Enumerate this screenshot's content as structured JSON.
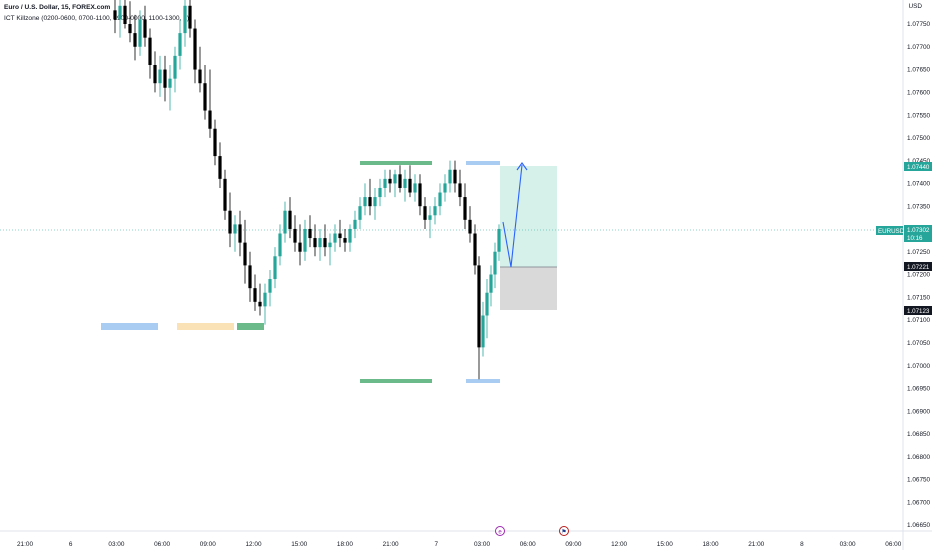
{
  "header": {
    "title": "Euro / U.S. Dollar, 15, FOREX.com",
    "indicator": "ICT Killzone (0200-0600, 0700-1100, 1900-0000, 1100-1300, 2)"
  },
  "price_axis": {
    "currency": "USD",
    "tick_labels": [
      "1.07750",
      "1.07700",
      "1.07650",
      "1.07600",
      "1.07550",
      "1.07500",
      "1.07450",
      "1.07400",
      "1.07350",
      "1.07300",
      "1.07250",
      "1.07200",
      "1.07150",
      "1.07100",
      "1.07050",
      "1.07000",
      "1.06950",
      "1.06900",
      "1.06850",
      "1.06800",
      "1.06750",
      "1.06700",
      "1.06650"
    ]
  },
  "time_axis": {
    "tick_labels": [
      "21:00",
      "6",
      "03:00",
      "06:00",
      "09:00",
      "12:00",
      "15:00",
      "18:00",
      "21:00",
      "7",
      "03:00",
      "06:00",
      "09:00",
      "12:00",
      "15:00",
      "18:00",
      "21:00",
      "8",
      "03:00",
      "06:00"
    ]
  },
  "price_tags": {
    "symbol": "EURUSD",
    "last_price": "1.07302",
    "countdown": "10:16",
    "target": "1.07440",
    "entry": "1.07221",
    "stop": "1.07123"
  },
  "events": [
    {
      "name": "earnings-marker",
      "glyph": "e"
    },
    {
      "name": "us-flag-event",
      "glyph": "⚑"
    }
  ],
  "colors": {
    "up": "#26a69a",
    "down": "#000000",
    "killzone_green": "#6bbb8a",
    "killzone_blue": "#a8ccf2",
    "killzone_orange": "#fbe1b6",
    "profit_zone": "#d6f0ea",
    "loss_zone": "#d9d9d9",
    "arrow": "#2962ff"
  },
  "chart_data": {
    "type": "candlestick",
    "symbol": "EURUSD",
    "interval": "15",
    "ylim": [
      1.0664,
      1.0779
    ],
    "candles_sketch": [
      {
        "x": 115,
        "o": 1.0778,
        "h": 1.0782,
        "l": 1.0773,
        "c": 1.0776
      },
      {
        "x": 120,
        "o": 1.0776,
        "h": 1.0781,
        "l": 1.0772,
        "c": 1.0779
      },
      {
        "x": 125,
        "o": 1.0779,
        "h": 1.0782,
        "l": 1.0774,
        "c": 1.0775
      },
      {
        "x": 130,
        "o": 1.0775,
        "h": 1.078,
        "l": 1.0771,
        "c": 1.0773
      },
      {
        "x": 135,
        "o": 1.0773,
        "h": 1.0777,
        "l": 1.0767,
        "c": 1.077
      },
      {
        "x": 140,
        "o": 1.077,
        "h": 1.0778,
        "l": 1.0768,
        "c": 1.0776
      },
      {
        "x": 145,
        "o": 1.0776,
        "h": 1.0779,
        "l": 1.077,
        "c": 1.0772
      },
      {
        "x": 150,
        "o": 1.0772,
        "h": 1.0774,
        "l": 1.0763,
        "c": 1.0766
      },
      {
        "x": 155,
        "o": 1.0766,
        "h": 1.0769,
        "l": 1.076,
        "c": 1.0762
      },
      {
        "x": 160,
        "o": 1.0762,
        "h": 1.0768,
        "l": 1.0759,
        "c": 1.0765
      },
      {
        "x": 165,
        "o": 1.0765,
        "h": 1.0768,
        "l": 1.0758,
        "c": 1.0761
      },
      {
        "x": 170,
        "o": 1.0761,
        "h": 1.0766,
        "l": 1.0756,
        "c": 1.0763
      },
      {
        "x": 175,
        "o": 1.0763,
        "h": 1.077,
        "l": 1.076,
        "c": 1.0768
      },
      {
        "x": 180,
        "o": 1.0768,
        "h": 1.0776,
        "l": 1.0765,
        "c": 1.0773
      },
      {
        "x": 185,
        "o": 1.0773,
        "h": 1.0782,
        "l": 1.077,
        "c": 1.0779
      },
      {
        "x": 190,
        "o": 1.0779,
        "h": 1.0782,
        "l": 1.0772,
        "c": 1.0774
      },
      {
        "x": 195,
        "o": 1.0774,
        "h": 1.0776,
        "l": 1.0762,
        "c": 1.0765
      },
      {
        "x": 200,
        "o": 1.0765,
        "h": 1.077,
        "l": 1.076,
        "c": 1.0762
      },
      {
        "x": 205,
        "o": 1.0762,
        "h": 1.0766,
        "l": 1.0754,
        "c": 1.0756
      },
      {
        "x": 210,
        "o": 1.0756,
        "h": 1.0765,
        "l": 1.075,
        "c": 1.0752
      },
      {
        "x": 215,
        "o": 1.0752,
        "h": 1.0754,
        "l": 1.0744,
        "c": 1.0746
      },
      {
        "x": 220,
        "o": 1.0746,
        "h": 1.0749,
        "l": 1.0739,
        "c": 1.0741
      },
      {
        "x": 225,
        "o": 1.0741,
        "h": 1.0743,
        "l": 1.0732,
        "c": 1.0734
      },
      {
        "x": 230,
        "o": 1.0734,
        "h": 1.0738,
        "l": 1.0726,
        "c": 1.0729
      },
      {
        "x": 235,
        "o": 1.0729,
        "h": 1.0733,
        "l": 1.0725,
        "c": 1.0731
      },
      {
        "x": 240,
        "o": 1.0731,
        "h": 1.0734,
        "l": 1.0724,
        "c": 1.0727
      },
      {
        "x": 245,
        "o": 1.0727,
        "h": 1.0732,
        "l": 1.0718,
        "c": 1.0722
      },
      {
        "x": 250,
        "o": 1.0722,
        "h": 1.0725,
        "l": 1.0714,
        "c": 1.0717
      },
      {
        "x": 255,
        "o": 1.0717,
        "h": 1.072,
        "l": 1.0712,
        "c": 1.0714
      },
      {
        "x": 260,
        "o": 1.0714,
        "h": 1.0718,
        "l": 1.0711,
        "c": 1.0713
      },
      {
        "x": 265,
        "o": 1.0713,
        "h": 1.0718,
        "l": 1.0709,
        "c": 1.0716
      },
      {
        "x": 270,
        "o": 1.0716,
        "h": 1.0721,
        "l": 1.0713,
        "c": 1.0719
      },
      {
        "x": 275,
        "o": 1.0719,
        "h": 1.0726,
        "l": 1.0717,
        "c": 1.0724
      },
      {
        "x": 280,
        "o": 1.0724,
        "h": 1.0731,
        "l": 1.0722,
        "c": 1.0729
      },
      {
        "x": 285,
        "o": 1.0729,
        "h": 1.0736,
        "l": 1.0727,
        "c": 1.0734
      },
      {
        "x": 290,
        "o": 1.0734,
        "h": 1.0737,
        "l": 1.0728,
        "c": 1.073
      },
      {
        "x": 295,
        "o": 1.073,
        "h": 1.0733,
        "l": 1.0725,
        "c": 1.0727
      },
      {
        "x": 300,
        "o": 1.0727,
        "h": 1.0731,
        "l": 1.0722,
        "c": 1.0725
      },
      {
        "x": 305,
        "o": 1.0725,
        "h": 1.0732,
        "l": 1.0723,
        "c": 1.073
      },
      {
        "x": 310,
        "o": 1.073,
        "h": 1.0733,
        "l": 1.0726,
        "c": 1.0728
      },
      {
        "x": 315,
        "o": 1.0728,
        "h": 1.0731,
        "l": 1.0724,
        "c": 1.0726
      },
      {
        "x": 320,
        "o": 1.0726,
        "h": 1.073,
        "l": 1.0723,
        "c": 1.0728
      },
      {
        "x": 325,
        "o": 1.0728,
        "h": 1.0731,
        "l": 1.0724,
        "c": 1.0726
      },
      {
        "x": 330,
        "o": 1.0726,
        "h": 1.0729,
        "l": 1.0722,
        "c": 1.0727
      },
      {
        "x": 335,
        "o": 1.0727,
        "h": 1.0731,
        "l": 1.0725,
        "c": 1.0729
      },
      {
        "x": 340,
        "o": 1.0729,
        "h": 1.0732,
        "l": 1.0726,
        "c": 1.0728
      },
      {
        "x": 345,
        "o": 1.0728,
        "h": 1.073,
        "l": 1.0725,
        "c": 1.0727
      },
      {
        "x": 350,
        "o": 1.0727,
        "h": 1.0731,
        "l": 1.0725,
        "c": 1.073
      },
      {
        "x": 355,
        "o": 1.073,
        "h": 1.0734,
        "l": 1.0728,
        "c": 1.0732
      },
      {
        "x": 360,
        "o": 1.0732,
        "h": 1.0737,
        "l": 1.073,
        "c": 1.0735
      },
      {
        "x": 365,
        "o": 1.0735,
        "h": 1.074,
        "l": 1.0733,
        "c": 1.0737
      },
      {
        "x": 370,
        "o": 1.0737,
        "h": 1.0741,
        "l": 1.0733,
        "c": 1.0735
      },
      {
        "x": 375,
        "o": 1.0735,
        "h": 1.0739,
        "l": 1.0732,
        "c": 1.0737
      },
      {
        "x": 380,
        "o": 1.0737,
        "h": 1.0741,
        "l": 1.0735,
        "c": 1.0739
      },
      {
        "x": 385,
        "o": 1.0739,
        "h": 1.0743,
        "l": 1.0737,
        "c": 1.0741
      },
      {
        "x": 390,
        "o": 1.0741,
        "h": 1.0743,
        "l": 1.0738,
        "c": 1.074
      },
      {
        "x": 395,
        "o": 1.074,
        "h": 1.0743,
        "l": 1.0737,
        "c": 1.0742
      },
      {
        "x": 400,
        "o": 1.0742,
        "h": 1.0744,
        "l": 1.0738,
        "c": 1.0739
      },
      {
        "x": 405,
        "o": 1.0739,
        "h": 1.0743,
        "l": 1.0736,
        "c": 1.0741
      },
      {
        "x": 410,
        "o": 1.0741,
        "h": 1.0744,
        "l": 1.0737,
        "c": 1.0738
      },
      {
        "x": 415,
        "o": 1.0738,
        "h": 1.0742,
        "l": 1.0736,
        "c": 1.074
      },
      {
        "x": 420,
        "o": 1.074,
        "h": 1.0742,
        "l": 1.0733,
        "c": 1.0735
      },
      {
        "x": 425,
        "o": 1.0735,
        "h": 1.0737,
        "l": 1.073,
        "c": 1.0732
      },
      {
        "x": 430,
        "o": 1.0732,
        "h": 1.0735,
        "l": 1.0728,
        "c": 1.0733
      },
      {
        "x": 435,
        "o": 1.0733,
        "h": 1.0737,
        "l": 1.0731,
        "c": 1.0735
      },
      {
        "x": 440,
        "o": 1.0735,
        "h": 1.074,
        "l": 1.0733,
        "c": 1.0738
      },
      {
        "x": 445,
        "o": 1.0738,
        "h": 1.0742,
        "l": 1.0736,
        "c": 1.074
      },
      {
        "x": 450,
        "o": 1.074,
        "h": 1.0745,
        "l": 1.0738,
        "c": 1.0743
      },
      {
        "x": 455,
        "o": 1.0743,
        "h": 1.0745,
        "l": 1.0738,
        "c": 1.074
      },
      {
        "x": 460,
        "o": 1.074,
        "h": 1.0743,
        "l": 1.0735,
        "c": 1.0737
      },
      {
        "x": 465,
        "o": 1.0737,
        "h": 1.074,
        "l": 1.073,
        "c": 1.0732
      },
      {
        "x": 470,
        "o": 1.0732,
        "h": 1.0735,
        "l": 1.0727,
        "c": 1.0729
      },
      {
        "x": 475,
        "o": 1.0729,
        "h": 1.0731,
        "l": 1.072,
        "c": 1.0722
      },
      {
        "x": 479,
        "o": 1.0722,
        "h": 1.0724,
        "l": 1.0697,
        "c": 1.0704
      },
      {
        "x": 483,
        "o": 1.0704,
        "h": 1.0714,
        "l": 1.0702,
        "c": 1.0711
      },
      {
        "x": 487,
        "o": 1.0711,
        "h": 1.0719,
        "l": 1.0706,
        "c": 1.0716
      },
      {
        "x": 491,
        "o": 1.0716,
        "h": 1.0722,
        "l": 1.0713,
        "c": 1.072
      },
      {
        "x": 495,
        "o": 1.072,
        "h": 1.0727,
        "l": 1.0717,
        "c": 1.0725
      },
      {
        "x": 499,
        "o": 1.0725,
        "h": 1.0731,
        "l": 1.0723,
        "c": 1.073
      }
    ]
  }
}
